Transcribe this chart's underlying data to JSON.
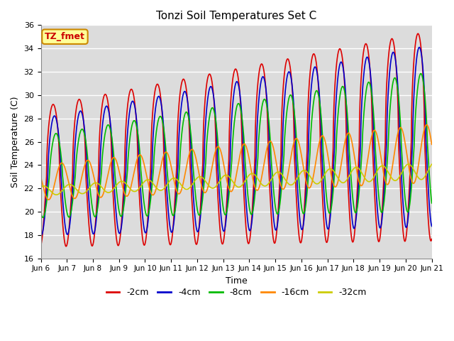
{
  "title": "Tonzi Soil Temperatures Set C",
  "xlabel": "Time",
  "ylabel": "Soil Temperature (C)",
  "ylim": [
    16,
    36
  ],
  "background_color": "#dcdcdc",
  "annotation_text": "TZ_fmet",
  "annotation_bg": "#ffff99",
  "annotation_border": "#cc0000",
  "line_colors": {
    "-2cm": "#dd0000",
    "-4cm": "#0000cc",
    "-8cm": "#00bb00",
    "-16cm": "#ff8800",
    "-32cm": "#cccc00"
  },
  "legend_labels": [
    "-2cm",
    "-4cm",
    "-8cm",
    "-16cm",
    "-32cm"
  ],
  "xtick_labels": [
    "Jun 6",
    "Jun 7",
    "Jun 8",
    "Jun 9",
    "Jun 10",
    "Jun 11",
    "Jun 12",
    "Jun 13",
    "Jun 14",
    "Jun 15",
    "Jun 16",
    "Jun 17",
    "Jun 18",
    "Jun 19",
    "Jun 20",
    "Jun 21"
  ],
  "grid_color": "#ffffff",
  "num_days": 15
}
